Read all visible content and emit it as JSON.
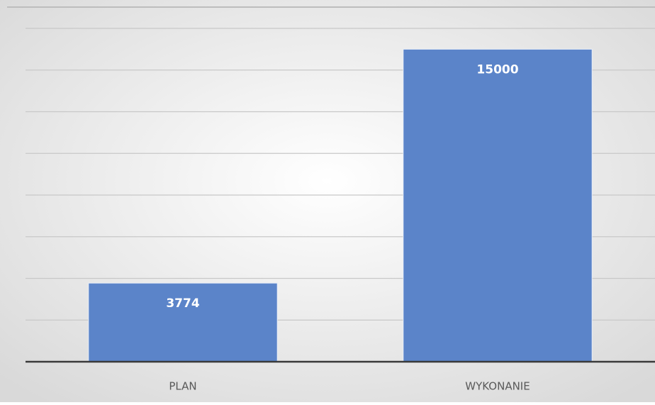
{
  "chart_data": {
    "type": "bar",
    "categories": [
      "PLAN",
      "WYKONANIE"
    ],
    "values": [
      3774,
      15000
    ],
    "color": "#5b84c9",
    "ylim": [
      0,
      16000
    ],
    "yticks": [
      0,
      2000,
      4000,
      6000,
      8000,
      10000,
      12000,
      14000,
      16000
    ],
    "grid": true
  }
}
